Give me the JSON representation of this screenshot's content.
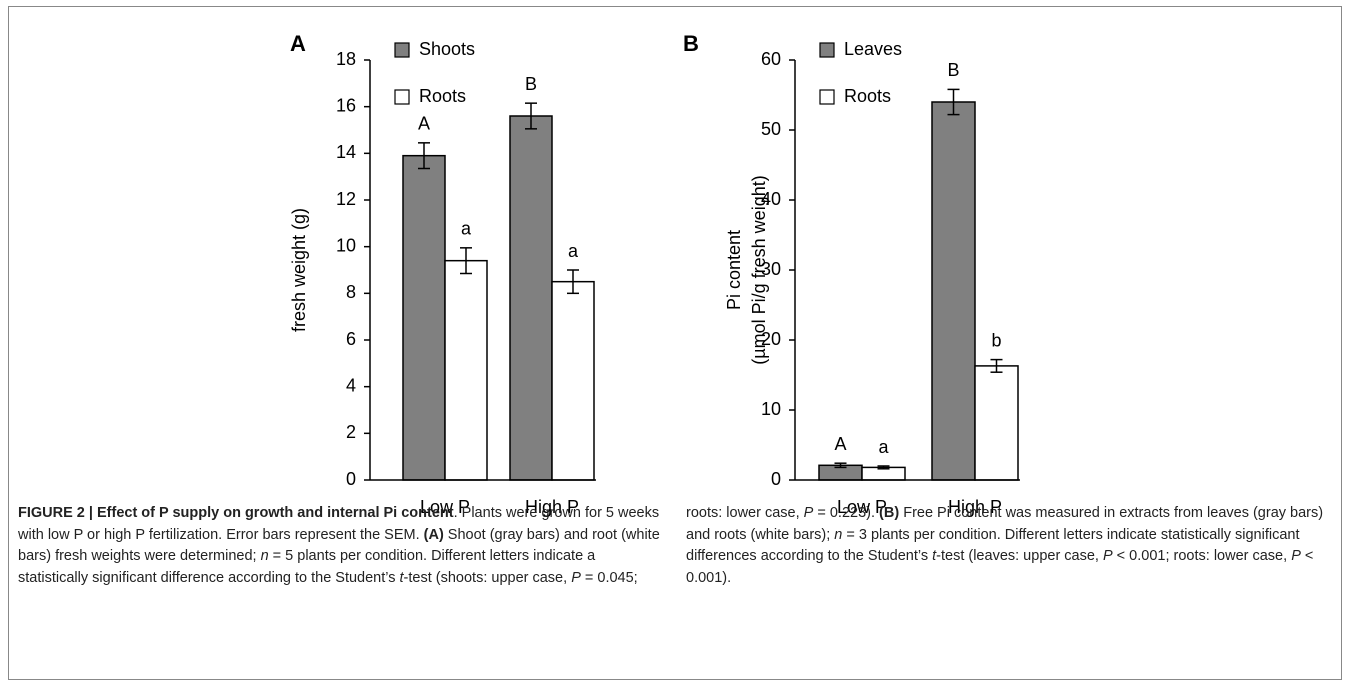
{
  "chart_data": [
    {
      "type": "bar",
      "panel": "A",
      "ylabel": [
        "fresh weight (g)"
      ],
      "categories": [
        "Low P",
        "High P"
      ],
      "series": [
        {
          "name": "Shoots",
          "color": "#808080",
          "values": [
            13.9,
            15.6
          ],
          "errors": [
            0.55,
            0.55
          ],
          "letters": [
            "A",
            "B"
          ]
        },
        {
          "name": "Roots",
          "color": "#ffffff",
          "values": [
            9.4,
            8.5
          ],
          "errors": [
            0.55,
            0.5
          ],
          "letters": [
            "a",
            "a"
          ]
        }
      ],
      "ylim": [
        0,
        18
      ],
      "yticks": [
        0,
        2,
        4,
        6,
        8,
        10,
        12,
        14,
        16,
        18
      ],
      "grid": false,
      "legend": "top-left"
    },
    {
      "type": "bar",
      "panel": "B",
      "ylabel": [
        "Pi content",
        "(µmol Pi/g fresh weight)"
      ],
      "categories": [
        "Low P",
        "High P"
      ],
      "series": [
        {
          "name": "Leaves",
          "color": "#808080",
          "values": [
            2.1,
            54.0
          ],
          "errors": [
            0.3,
            1.8
          ],
          "letters": [
            "A",
            "B"
          ]
        },
        {
          "name": "Roots",
          "color": "#ffffff",
          "values": [
            1.8,
            16.3
          ],
          "errors": [
            0.2,
            0.9
          ],
          "letters": [
            "a",
            "b"
          ]
        }
      ],
      "ylim": [
        0,
        60
      ],
      "yticks": [
        0,
        10,
        20,
        30,
        40,
        50,
        60
      ],
      "grid": false,
      "legend": "top-left"
    }
  ],
  "caption": {
    "segments": [
      "FIGURE 2 | Effect of P supply on growth and internal Pi content",
      ". Plants were grown for 5 weeks with low P or high P fertilization. Error bars represent the SEM. ",
      "(A)",
      " Shoot (gray bars) and root (white bars) fresh weights were determined; ",
      "n",
      " = 5 plants per condition. Different letters indicate a statistically significant difference according to the Student’s ",
      "t",
      "-test (shoots: upper case, ",
      "P",
      " = 0.045; roots: lower case, ",
      "P",
      " = 0.223). ",
      "(B)",
      " Free Pi content was measured in extracts from leaves (gray bars) and roots (white bars); ",
      "n",
      " = 3 plants per condition. Different letters indicate statistically significant differences according to the Student’s ",
      "t",
      "-test (leaves: upper case, ",
      "P",
      " < 0.001; roots: lower case, ",
      "P",
      " < 0.001)."
    ]
  }
}
